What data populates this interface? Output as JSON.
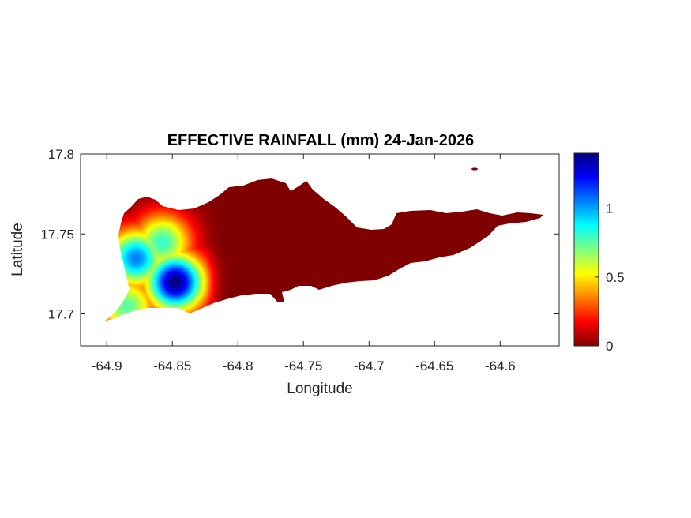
{
  "chart_data": {
    "type": "heatmap",
    "title": "EFFECTIVE RAINFALL (mm) 24-Jan-2026",
    "xlabel": "Longitude",
    "ylabel": "Latitude",
    "xlim": [
      -64.92,
      -64.555
    ],
    "ylim": [
      17.68,
      17.8
    ],
    "xticks": [
      -64.9,
      -64.85,
      -64.8,
      -64.75,
      -64.7,
      -64.65,
      -64.6
    ],
    "xtick_labels": [
      "-64.9",
      "-64.85",
      "-64.8",
      "-64.75",
      "-64.7",
      "-64.65",
      "-64.6"
    ],
    "yticks": [
      17.7,
      17.75,
      17.8
    ],
    "ytick_labels": [
      "17.7",
      "17.75",
      "17.8"
    ],
    "colorbar": {
      "colormap": "jet",
      "range": [
        0,
        1.4
      ],
      "ticks": [
        0,
        0.5,
        1
      ],
      "tick_labels": [
        "0",
        "0.5",
        "1"
      ]
    },
    "field": {
      "background_value": 0,
      "peaks": [
        {
          "lon": -64.848,
          "lat": 17.72,
          "value": 1.4
        },
        {
          "lon": -64.878,
          "lat": 17.735,
          "value": 1.05
        },
        {
          "lon": -64.858,
          "lat": 17.745,
          "value": 0.8
        },
        {
          "lon": -64.885,
          "lat": 17.705,
          "value": 0.75
        }
      ]
    },
    "grid": false,
    "legend": "none"
  }
}
